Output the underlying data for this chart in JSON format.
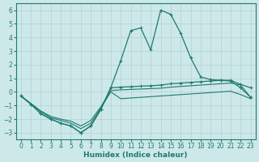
{
  "xlabel": "Humidex (Indice chaleur)",
  "xlim": [
    -0.5,
    23.5
  ],
  "ylim": [
    -3.5,
    6.5
  ],
  "yticks": [
    -3,
    -2,
    -1,
    0,
    1,
    2,
    3,
    4,
    5,
    6
  ],
  "xticks": [
    0,
    1,
    2,
    3,
    4,
    5,
    6,
    7,
    8,
    9,
    10,
    11,
    12,
    13,
    14,
    15,
    16,
    17,
    18,
    19,
    20,
    21,
    22,
    23
  ],
  "bg_color": "#cde8e8",
  "grid_color": "#b8d4d4",
  "line_color": "#1e7b70",
  "line1_y": [
    -0.3,
    -0.9,
    -1.6,
    -2.0,
    -2.3,
    -2.5,
    -3.0,
    -2.5,
    -1.3,
    0.3,
    2.3,
    4.5,
    4.7,
    3.1,
    6.0,
    5.7,
    4.3,
    2.5,
    1.1,
    0.9,
    0.85,
    0.8,
    0.3,
    -0.4
  ],
  "line2_y": [
    -0.3,
    -0.9,
    -1.6,
    -2.0,
    -2.3,
    -2.5,
    -3.0,
    -2.5,
    -1.3,
    0.3,
    0.35,
    0.38,
    0.42,
    0.45,
    0.5,
    0.6,
    0.65,
    0.7,
    0.75,
    0.8,
    0.85,
    0.85,
    0.55,
    0.3
  ],
  "line3_y": [
    -0.3,
    -0.85,
    -1.4,
    -1.8,
    -2.0,
    -2.15,
    -2.5,
    -2.1,
    -1.1,
    0.1,
    0.15,
    0.18,
    0.21,
    0.24,
    0.27,
    0.35,
    0.4,
    0.45,
    0.5,
    0.55,
    0.6,
    0.65,
    0.5,
    -0.4
  ],
  "line4_y": [
    -0.3,
    -0.85,
    -1.45,
    -1.9,
    -2.1,
    -2.3,
    -2.7,
    -2.3,
    -1.2,
    0.0,
    -0.5,
    -0.45,
    -0.4,
    -0.35,
    -0.3,
    -0.25,
    -0.2,
    -0.15,
    -0.1,
    -0.05,
    0.0,
    0.05,
    -0.2,
    -0.5
  ]
}
